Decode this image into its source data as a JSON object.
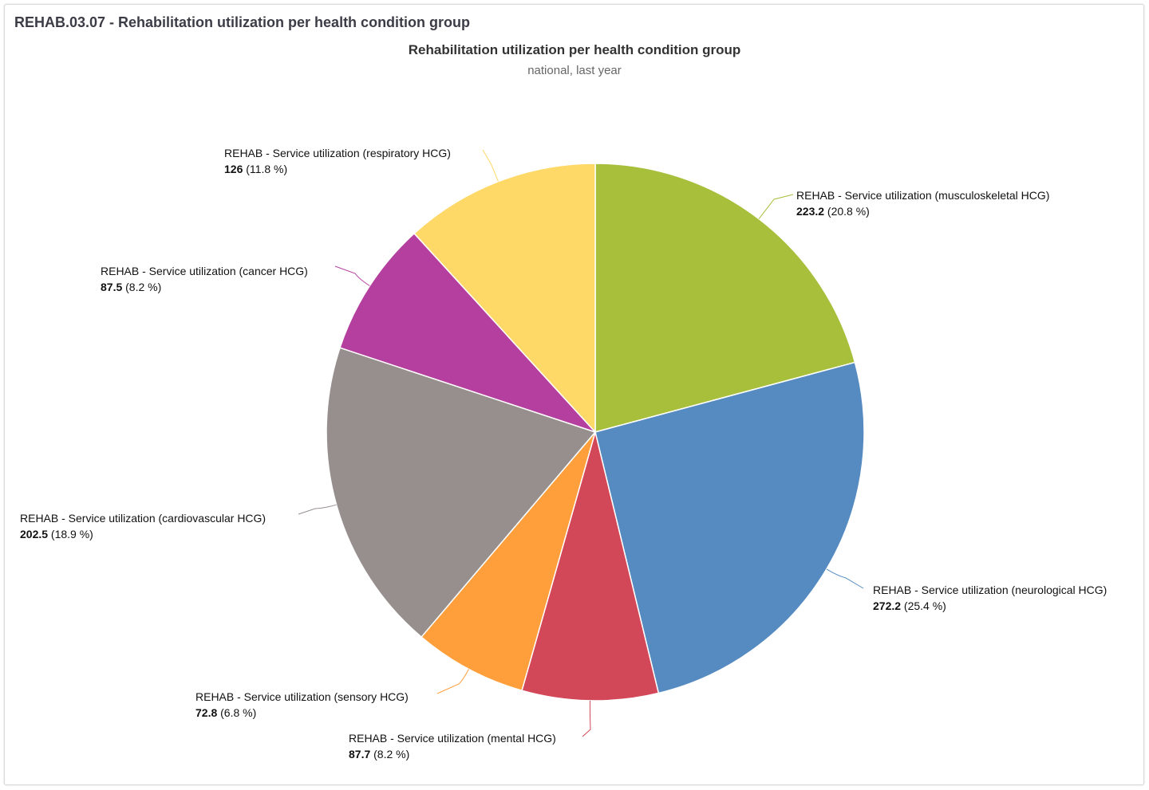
{
  "panel": {
    "title": "REHAB.03.07 - Rehabilitation utilization per health condition group"
  },
  "chart_data": {
    "type": "pie",
    "title": "Rehabilitation utilization per health condition group",
    "subtitle": "national, last year",
    "slices": [
      {
        "name": "REHAB - Service utilization (musculoskeletal HCG)",
        "value": 223.2,
        "value_label": "223.2",
        "percent_label": "(20.8 %)",
        "color": "#a8bf3c"
      },
      {
        "name": "REHAB - Service utilization (neurological HCG)",
        "value": 272.2,
        "value_label": "272.2",
        "percent_label": "(25.4 %)",
        "color": "#568bc1"
      },
      {
        "name": "REHAB - Service utilization (mental HCG)",
        "value": 87.7,
        "value_label": "87.7",
        "percent_label": "(8.2 %)",
        "color": "#d24858"
      },
      {
        "name": "REHAB - Service utilization (sensory HCG)",
        "value": 72.8,
        "value_label": "72.8",
        "percent_label": "(6.8 %)",
        "color": "#fe9f3c"
      },
      {
        "name": "REHAB - Service utilization (cardiovascular HCG)",
        "value": 202.5,
        "value_label": "202.5",
        "percent_label": "(18.9 %)",
        "color": "#968f8e"
      },
      {
        "name": "REHAB - Service utilization (cancer HCG)",
        "value": 87.5,
        "value_label": "87.5",
        "percent_label": "(8.2 %)",
        "color": "#b43f9f"
      },
      {
        "name": "REHAB - Service utilization (respiratory HCG)",
        "value": 126,
        "value_label": "126",
        "percent_label": "(11.8 %)",
        "color": "#fed968"
      }
    ]
  }
}
